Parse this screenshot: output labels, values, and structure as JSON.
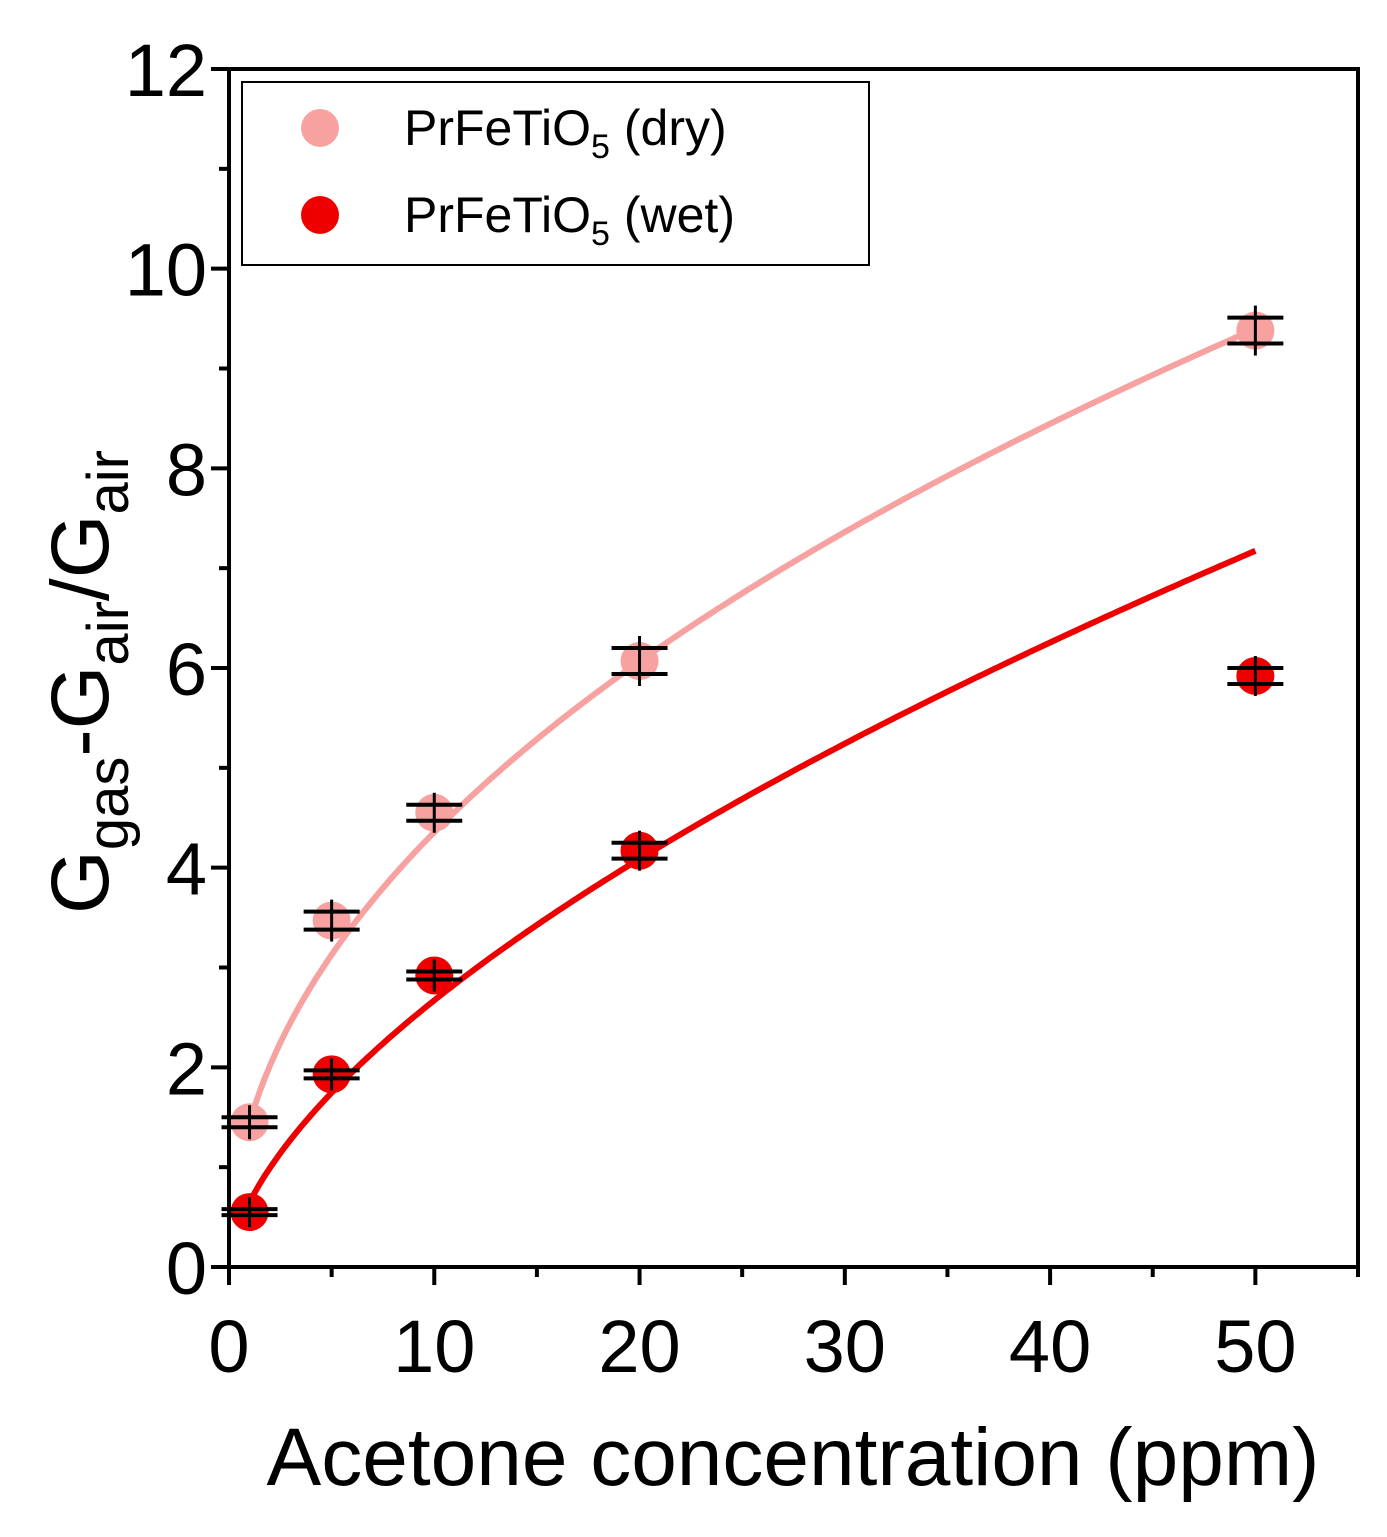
{
  "chart_data": {
    "type": "scatter",
    "xlabel": "Acetone concentration (ppm)",
    "ylabel": {
      "parts": [
        {
          "text": "G",
          "sub": false
        },
        {
          "text": "gas",
          "sub": true
        },
        {
          "text": "-G",
          "sub": false
        },
        {
          "text": "air",
          "sub": true
        },
        {
          "text": "/G",
          "sub": false
        },
        {
          "text": "air",
          "sub": true
        }
      ]
    },
    "xlim": [
      0,
      55
    ],
    "ylim": [
      0,
      12
    ],
    "xticks": [
      "0",
      "10",
      "20",
      "30",
      "40",
      "50"
    ],
    "xtick_values": [
      0,
      10,
      20,
      30,
      40,
      50
    ],
    "yticks": [
      "0",
      "2",
      "4",
      "6",
      "8",
      "10",
      "12"
    ],
    "ytick_values": [
      0,
      2,
      4,
      6,
      8,
      10,
      12
    ],
    "grid": false,
    "legend_position": "top-left",
    "series": [
      {
        "name_main": "PrFeTiO",
        "name_sub": "5",
        "name_tail": " (dry)",
        "color": "#f7a1a1",
        "x": [
          1,
          5,
          10,
          20,
          50
        ],
        "y": [
          1.45,
          3.47,
          4.55,
          6.07,
          9.38
        ],
        "err": [
          0.05,
          0.09,
          0.08,
          0.13,
          0.13
        ],
        "fit": {
          "a": 1.45,
          "b": 0.4777
        }
      },
      {
        "name_main": "PrFeTiO",
        "name_sub": "5",
        "name_tail": " (wet)",
        "color": "#ee0000",
        "x": [
          1,
          5,
          10,
          20,
          50
        ],
        "y": [
          0.55,
          1.93,
          2.92,
          4.17,
          5.92
        ],
        "err": [
          0.03,
          0.04,
          0.04,
          0.08,
          0.08
        ],
        "fit": {
          "a": 0.65,
          "b": 0.6138
        }
      }
    ]
  }
}
